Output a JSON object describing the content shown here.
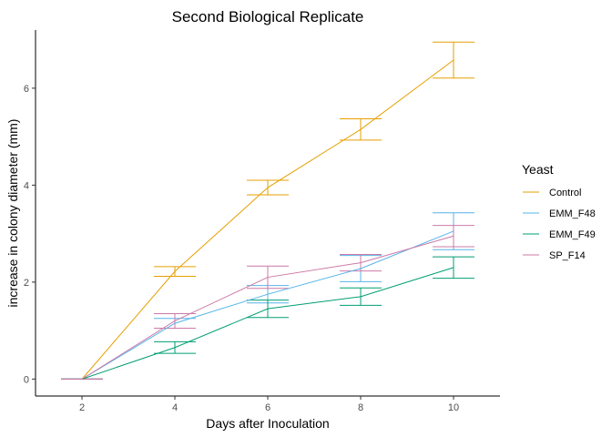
{
  "chart_data": {
    "type": "line",
    "title": "Second Biological Replicate",
    "xlabel": "Days after Inoculation",
    "ylabel": "increase in colony diameter (mm)",
    "x": [
      2,
      4,
      6,
      8,
      10
    ],
    "xlim": [
      1,
      11
    ],
    "ylim": [
      -0.35,
      7.2
    ],
    "x_ticks": [
      "2",
      "4",
      "6",
      "8",
      "10"
    ],
    "y_ticks": [
      "0",
      "2",
      "4",
      "6"
    ],
    "grid": false,
    "legend": {
      "title": "Yeast",
      "position": "right"
    },
    "series": [
      {
        "name": "Control",
        "color": "#E69F00",
        "values": [
          0,
          2.22,
          3.95,
          5.15,
          6.58
        ],
        "error": [
          0,
          0.1,
          0.15,
          0.22,
          0.37
        ]
      },
      {
        "name": "EMM_F48",
        "color": "#56B4E9",
        "values": [
          0,
          1.15,
          1.75,
          2.28,
          3.05
        ],
        "error": [
          0,
          0.1,
          0.18,
          0.27,
          0.38
        ]
      },
      {
        "name": "EMM_F49",
        "color": "#009E73",
        "values": [
          0,
          0.65,
          1.45,
          1.7,
          2.3
        ],
        "error": [
          0,
          0.12,
          0.18,
          0.18,
          0.22
        ]
      },
      {
        "name": "SP_F14",
        "color": "#CC79A7",
        "values": [
          0,
          1.2,
          2.1,
          2.4,
          2.95
        ],
        "error": [
          0,
          0.15,
          0.23,
          0.17,
          0.22
        ]
      }
    ]
  }
}
